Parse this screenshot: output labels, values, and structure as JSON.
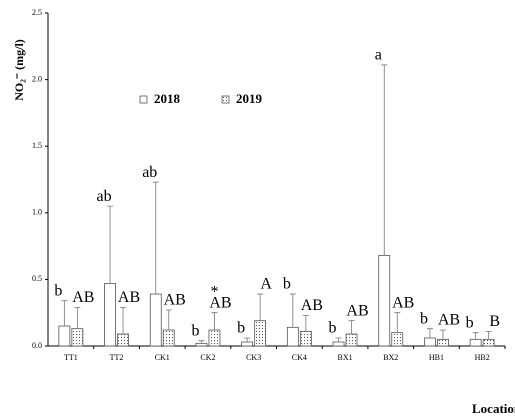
{
  "chart_data": {
    "type": "bar",
    "y_label": "NO₂⁻ (mg/l)",
    "x_label": "Location",
    "categories": [
      "TT1",
      "TT2",
      "CK1",
      "CK2",
      "CK3",
      "CK4",
      "BX1",
      "BX2",
      "HB1",
      "HB2"
    ],
    "series": [
      {
        "name": "2018",
        "color": "#ffffff",
        "pattern": "none",
        "values": [
          0.15,
          0.47,
          0.39,
          0.02,
          0.03,
          0.14,
          0.03,
          0.68,
          0.06,
          0.05
        ],
        "errors": [
          0.19,
          0.58,
          0.84,
          0.02,
          0.03,
          0.25,
          0.03,
          1.43,
          0.07,
          0.05
        ],
        "annotations": [
          "b",
          "ab",
          "ab",
          "b",
          "b",
          "b",
          "b",
          "a",
          "b",
          "b"
        ]
      },
      {
        "name": "2019",
        "color": "#ffffff",
        "pattern": "dots",
        "values": [
          0.13,
          0.09,
          0.12,
          0.12,
          0.19,
          0.11,
          0.09,
          0.1,
          0.05,
          0.05
        ],
        "errors": [
          0.16,
          0.2,
          0.15,
          0.13,
          0.2,
          0.12,
          0.1,
          0.15,
          0.07,
          0.06
        ],
        "annotations": [
          "AB",
          "AB",
          "AB",
          "AB",
          "A",
          "AB",
          "AB",
          "AB",
          "AB",
          "B"
        ]
      }
    ],
    "markers": [
      {
        "text": "*",
        "category": "CK2",
        "series": "2019"
      }
    ],
    "ylim": [
      0,
      2.5
    ],
    "yticks": [
      {
        "value": 0,
        "label": "0.0"
      },
      0.5,
      {
        "value": 1,
        "label": "1.0"
      },
      1.5,
      {
        "value": 2,
        "label": "2.0"
      },
      2.5
    ],
    "grid": false,
    "legend": "upper left"
  }
}
